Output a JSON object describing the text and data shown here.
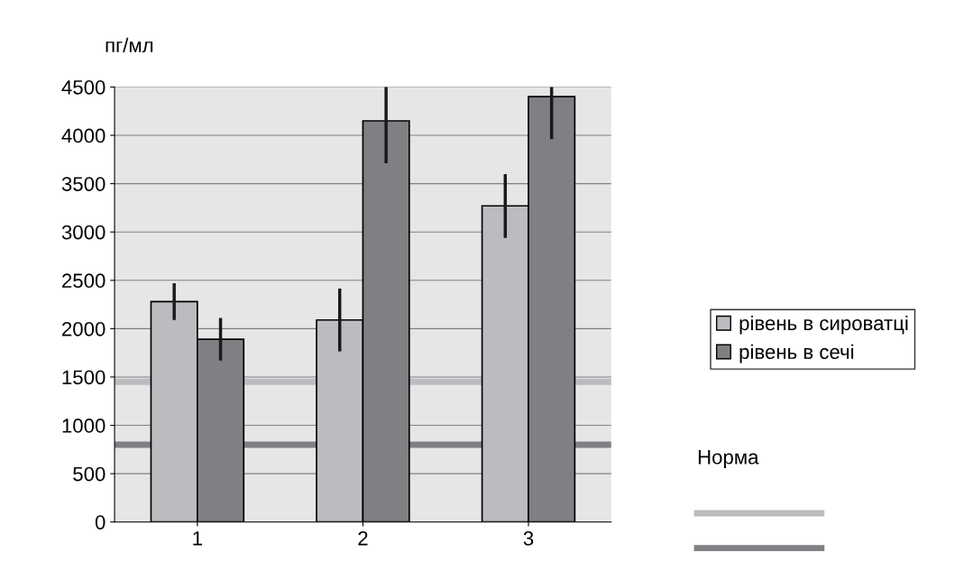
{
  "chart_data": {
    "type": "bar",
    "ylabel": "пг/мл",
    "categories": [
      "1",
      "2",
      "3"
    ],
    "series": [
      {
        "name": "рівень в сироватці",
        "color": "#bbbcc0",
        "values": [
          2280,
          2090,
          3270
        ],
        "errors": [
          190,
          325,
          330
        ]
      },
      {
        "name": "рівень в сечі",
        "color": "#7f8084",
        "values": [
          1890,
          4150,
          4400
        ],
        "errors": [
          220,
          440,
          440
        ]
      }
    ],
    "ylim": [
      0,
      4500
    ],
    "yticks": [
      0,
      500,
      1000,
      1500,
      2000,
      2500,
      3000,
      3500,
      4000,
      4500
    ],
    "grid": "y",
    "legend": "right",
    "ref_lines": [
      {
        "axis": "y",
        "value": 1450,
        "color": "#bbbcc0"
      },
      {
        "axis": "y",
        "value": 800,
        "color": "#7f8084"
      }
    ],
    "annotations": [
      "Норма"
    ]
  }
}
